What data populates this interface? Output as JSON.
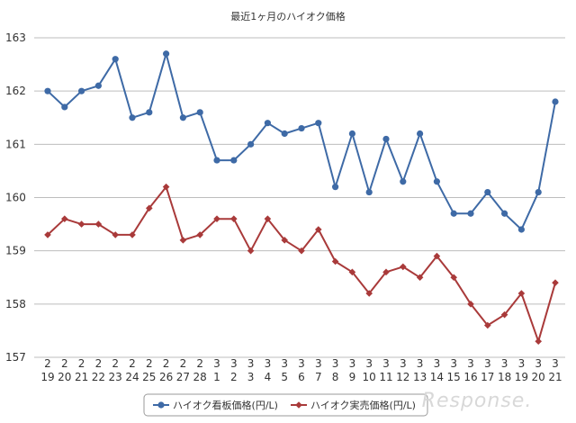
{
  "chart_data": {
    "type": "line",
    "title": "最近1ヶ月のハイオク価格",
    "ylim": [
      157,
      163
    ],
    "yticks": [
      157,
      158,
      159,
      160,
      161,
      162,
      163
    ],
    "grid": true,
    "legend_position": "bottom",
    "categories": [
      [
        "2",
        "19"
      ],
      [
        "2",
        "20"
      ],
      [
        "2",
        "21"
      ],
      [
        "2",
        "22"
      ],
      [
        "2",
        "23"
      ],
      [
        "2",
        "24"
      ],
      [
        "2",
        "25"
      ],
      [
        "2",
        "26"
      ],
      [
        "2",
        "27"
      ],
      [
        "2",
        "28"
      ],
      [
        "3",
        "1"
      ],
      [
        "3",
        "2"
      ],
      [
        "3",
        "3"
      ],
      [
        "3",
        "4"
      ],
      [
        "3",
        "5"
      ],
      [
        "3",
        "6"
      ],
      [
        "3",
        "7"
      ],
      [
        "3",
        "8"
      ],
      [
        "3",
        "9"
      ],
      [
        "3",
        "10"
      ],
      [
        "3",
        "11"
      ],
      [
        "3",
        "12"
      ],
      [
        "3",
        "13"
      ],
      [
        "3",
        "14"
      ],
      [
        "3",
        "15"
      ],
      [
        "3",
        "16"
      ],
      [
        "3",
        "17"
      ],
      [
        "3",
        "18"
      ],
      [
        "3",
        "19"
      ],
      [
        "3",
        "20"
      ],
      [
        "3",
        "21"
      ]
    ],
    "series": [
      {
        "name": "ハイオク看板価格(円/L)",
        "color": "#3e6aa6",
        "marker": "circle",
        "values": [
          162.0,
          161.7,
          162.0,
          162.1,
          162.6,
          161.5,
          161.6,
          162.7,
          161.5,
          161.6,
          160.7,
          160.7,
          161.0,
          161.4,
          161.2,
          161.3,
          161.4,
          160.2,
          161.2,
          160.1,
          161.1,
          160.3,
          161.2,
          160.3,
          159.7,
          159.7,
          160.1,
          159.7,
          159.4,
          160.1,
          161.8
        ]
      },
      {
        "name": "ハイオク実売価格(円/L)",
        "color": "#a93a3a",
        "marker": "diamond",
        "values": [
          159.3,
          159.6,
          159.5,
          159.5,
          159.3,
          159.3,
          159.8,
          160.2,
          159.2,
          159.3,
          159.6,
          159.6,
          159.0,
          159.6,
          159.2,
          159.0,
          159.4,
          158.8,
          158.6,
          158.2,
          158.6,
          158.7,
          158.5,
          158.9,
          158.5,
          158.0,
          157.6,
          157.8,
          158.2,
          157.3,
          158.4
        ]
      }
    ]
  },
  "watermark": "Response."
}
